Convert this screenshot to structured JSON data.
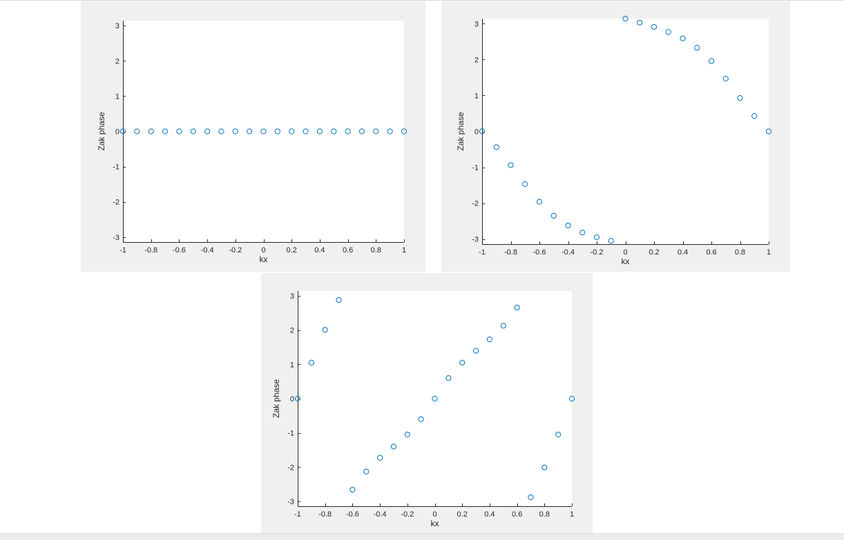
{
  "chart_data": [
    {
      "type": "scatter",
      "xlabel": "kx",
      "ylabel": "Zak phase",
      "xlim": [
        -1,
        1
      ],
      "ylim": [
        -3.14159,
        3.14159
      ],
      "xticks": [
        -1,
        -0.8,
        -0.6,
        -0.4,
        -0.2,
        0,
        0.2,
        0.4,
        0.6,
        0.8,
        1
      ],
      "xtick_labels": [
        "-1",
        "-0.8",
        "-0.6",
        "-0.4",
        "-0.2",
        "0",
        "0.2",
        "0.4",
        "0.6",
        "0.8",
        "1"
      ],
      "yticks": [
        -3,
        -2,
        -1,
        0,
        1,
        2,
        3
      ],
      "ytick_labels": [
        "-3",
        "-2",
        "-1",
        "0",
        "1",
        "2",
        "3"
      ],
      "marker": "circle",
      "color": "#0072bd",
      "grid": false,
      "series": [
        {
          "x": [
            -1,
            -0.9,
            -0.8,
            -0.7,
            -0.6,
            -0.5,
            -0.4,
            -0.3,
            -0.2,
            -0.1,
            0,
            0.1,
            0.2,
            0.3,
            0.4,
            0.5,
            0.6,
            0.7,
            0.8,
            0.9,
            1
          ],
          "y": [
            0,
            0,
            0,
            0,
            0,
            0,
            0,
            0,
            0,
            0,
            0,
            0,
            0,
            0,
            0,
            0,
            0,
            0,
            0,
            0,
            0
          ]
        }
      ]
    },
    {
      "type": "scatter",
      "xlabel": "kx",
      "ylabel": "Zak phase",
      "xlim": [
        -1,
        1
      ],
      "ylim": [
        -3.14159,
        3.14159
      ],
      "xticks": [
        -1,
        -0.8,
        -0.6,
        -0.4,
        -0.2,
        0,
        0.2,
        0.4,
        0.6,
        0.8,
        1
      ],
      "xtick_labels": [
        "-1",
        "-0.8",
        "-0.6",
        "-0.4",
        "-0.2",
        "0",
        "0.2",
        "0.4",
        "0.6",
        "0.8",
        "1"
      ],
      "yticks": [
        -3,
        -2,
        -1,
        0,
        1,
        2,
        3
      ],
      "ytick_labels": [
        "-3",
        "-2",
        "-1",
        "0",
        "1",
        "2",
        "3"
      ],
      "marker": "circle",
      "color": "#0072bd",
      "grid": false,
      "series": [
        {
          "x": [
            -1,
            -0.9,
            -0.8,
            -0.7,
            -0.6,
            -0.5,
            -0.4,
            -0.3,
            -0.2,
            -0.1,
            0,
            0.1,
            0.2,
            0.3,
            0.4,
            0.5,
            0.6,
            0.7,
            0.8,
            0.9,
            1
          ],
          "y": [
            0,
            -0.44,
            -0.94,
            -1.47,
            -1.96,
            -2.35,
            -2.62,
            -2.82,
            -2.95,
            -3.05,
            3.14,
            3.03,
            2.91,
            2.77,
            2.59,
            2.33,
            1.96,
            1.47,
            0.93,
            0.43,
            0
          ]
        }
      ]
    },
    {
      "type": "scatter",
      "xlabel": "kx",
      "ylabel": "Zak phase",
      "xlim": [
        -1,
        1
      ],
      "ylim": [
        -3.14159,
        3.14159
      ],
      "xticks": [
        -1,
        -0.8,
        -0.6,
        -0.4,
        -0.2,
        0,
        0.2,
        0.4,
        0.6,
        0.8,
        1
      ],
      "xtick_labels": [
        "-1",
        "-0.8",
        "-0.6",
        "-0.4",
        "-0.2",
        "0",
        "0.2",
        "0.4",
        "0.6",
        "0.8",
        "1"
      ],
      "yticks": [
        -3,
        -2,
        -1,
        0,
        1,
        2,
        3
      ],
      "ytick_labels": [
        "-3",
        "-2",
        "-1",
        "0",
        "1",
        "2",
        "3"
      ],
      "marker": "circle",
      "color": "#0072bd",
      "grid": false,
      "series": [
        {
          "x": [
            -1,
            -0.9,
            -0.8,
            -0.7,
            -0.6,
            -0.5,
            -0.4,
            -0.3,
            -0.2,
            -0.1,
            0,
            0.1,
            0.2,
            0.3,
            0.4,
            0.5,
            0.6,
            0.7,
            0.8,
            0.9,
            1
          ],
          "y": [
            0,
            1.05,
            2.01,
            2.88,
            -2.66,
            -2.13,
            -1.73,
            -1.4,
            -1.05,
            -0.6,
            0,
            0.6,
            1.05,
            1.4,
            1.73,
            2.13,
            2.66,
            -2.88,
            -2.01,
            -1.05,
            0
          ]
        }
      ]
    }
  ]
}
